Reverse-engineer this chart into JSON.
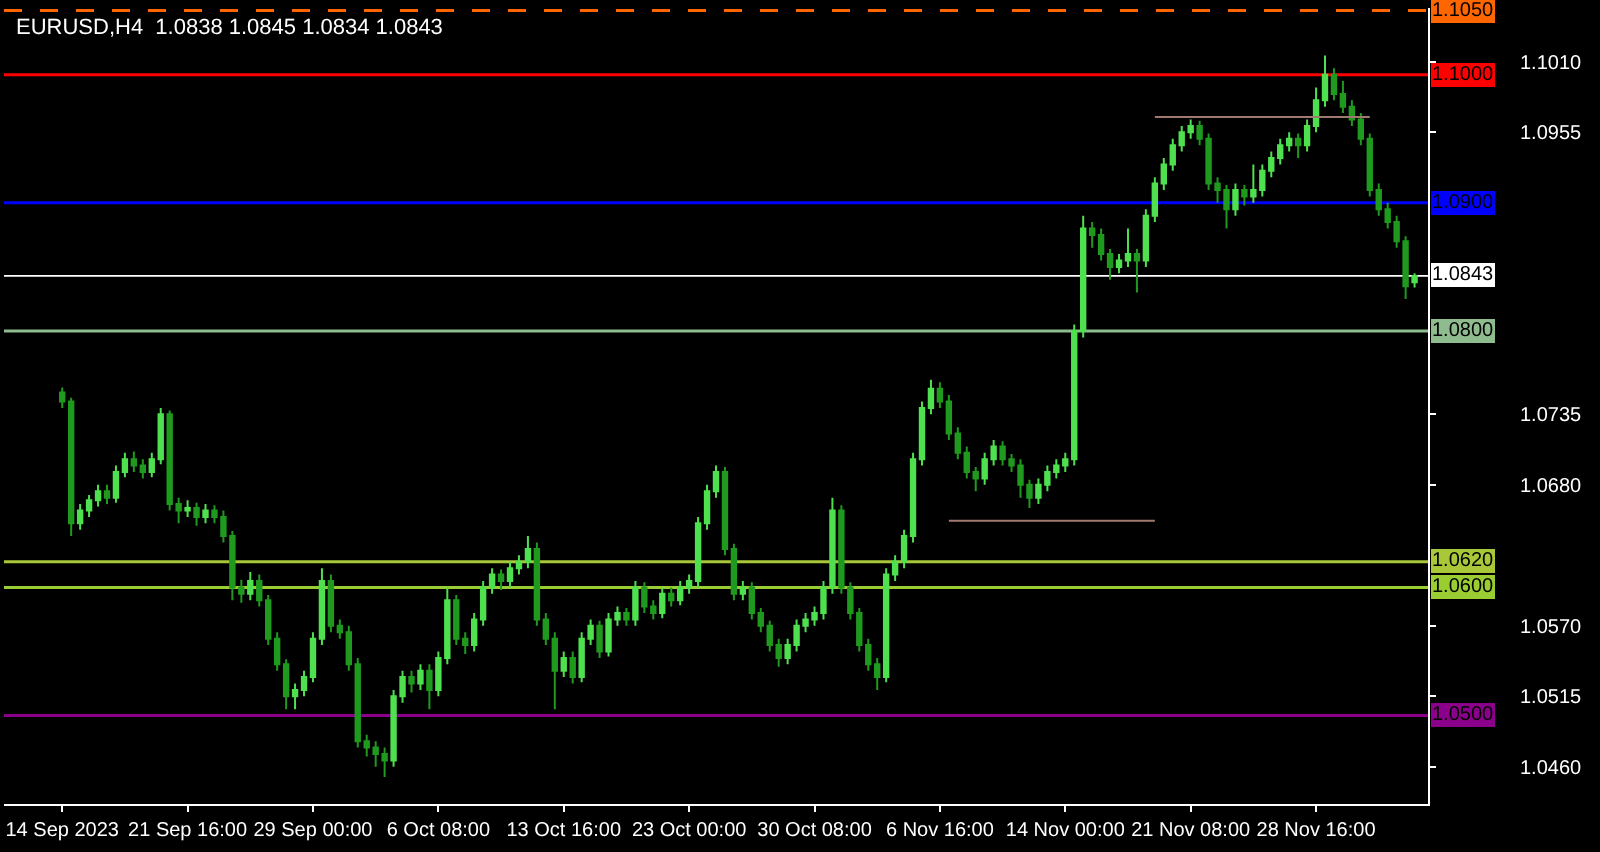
{
  "chart_data": {
    "type": "candlestick",
    "title": "EURUSD,H4  1.0838 1.0845 1.0834 1.0843",
    "categories": [
      "14 Sep 2023",
      null,
      null,
      null,
      null,
      null,
      null,
      null,
      null,
      null,
      null,
      null,
      null,
      null,
      "21 Sep 16:00",
      null,
      null,
      null,
      null,
      null,
      null,
      null,
      null,
      null,
      null,
      null,
      null,
      null,
      "29 Sep 00:00",
      null,
      null,
      null,
      null,
      null,
      null,
      null,
      null,
      null,
      null,
      null,
      null,
      null,
      "6 Oct 08:00",
      null,
      null,
      null,
      null,
      null,
      null,
      null,
      null,
      null,
      null,
      null,
      null,
      null,
      "13 Oct 16:00",
      null,
      null,
      null,
      null,
      null,
      null,
      null,
      null,
      null,
      null,
      null,
      null,
      null,
      "23 Oct 00:00",
      null,
      null,
      null,
      null,
      null,
      null,
      null,
      null,
      null,
      null,
      null,
      null,
      null,
      "30 Oct 08:00",
      null,
      null,
      null,
      null,
      null,
      null,
      null,
      null,
      null,
      null,
      null,
      null,
      null,
      "6 Nov 16:00",
      null,
      null,
      null,
      null,
      null,
      null,
      null,
      null,
      null,
      null,
      null,
      null,
      null,
      "14 Nov 00:00",
      null,
      null,
      null,
      null,
      null,
      null,
      null,
      null,
      null,
      null,
      null,
      null,
      null,
      "21 Nov 08:00",
      null,
      null,
      null,
      null,
      null,
      null,
      null,
      null,
      null,
      null,
      null,
      null,
      null,
      "28 Nov 16:00",
      null,
      null,
      null,
      null,
      null,
      null,
      null,
      null,
      null,
      null,
      null
    ],
    "ohlc": [
      [
        1.0752,
        1.0756,
        1.074,
        1.0745
      ],
      [
        1.0745,
        1.0748,
        1.064,
        1.065
      ],
      [
        1.065,
        1.0665,
        1.0645,
        1.066
      ],
      [
        1.066,
        1.0672,
        1.0655,
        1.0668
      ],
      [
        1.0668,
        1.068,
        1.0663,
        1.0675
      ],
      [
        1.0675,
        1.068,
        1.0665,
        1.067
      ],
      [
        1.067,
        1.0695,
        1.0666,
        1.069
      ],
      [
        1.069,
        1.0705,
        1.0686,
        1.07
      ],
      [
        1.07,
        1.0706,
        1.069,
        1.0695
      ],
      [
        1.0695,
        1.07,
        1.0685,
        1.069
      ],
      [
        1.069,
        1.0705,
        1.0686,
        1.07
      ],
      [
        1.07,
        1.074,
        1.0696,
        1.0735
      ],
      [
        1.0735,
        1.0738,
        1.066,
        1.0665
      ],
      [
        1.0665,
        1.067,
        1.065,
        1.066
      ],
      [
        1.066,
        1.0668,
        1.0655,
        1.0662
      ],
      [
        1.0662,
        1.0666,
        1.0648,
        1.0655
      ],
      [
        1.0655,
        1.0665,
        1.065,
        1.066
      ],
      [
        1.066,
        1.0664,
        1.065,
        1.0655
      ],
      [
        1.0655,
        1.066,
        1.0635,
        1.064
      ],
      [
        1.064,
        1.0644,
        1.059,
        1.06
      ],
      [
        1.06,
        1.0606,
        1.0588,
        1.0595
      ],
      [
        1.0595,
        1.0612,
        1.059,
        1.0605
      ],
      [
        1.0605,
        1.061,
        1.0585,
        1.059
      ],
      [
        1.059,
        1.0594,
        1.0555,
        1.056
      ],
      [
        1.056,
        1.0565,
        1.0535,
        1.054
      ],
      [
        1.054,
        1.0544,
        1.0505,
        1.0515
      ],
      [
        1.0515,
        1.0525,
        1.0505,
        1.052
      ],
      [
        1.052,
        1.0535,
        1.0515,
        1.053
      ],
      [
        1.053,
        1.0565,
        1.0526,
        1.056
      ],
      [
        1.056,
        1.0615,
        1.0555,
        1.0605
      ],
      [
        1.0605,
        1.061,
        1.0565,
        1.057
      ],
      [
        1.057,
        1.0575,
        1.056,
        1.0565
      ],
      [
        1.0565,
        1.057,
        1.0535,
        1.054
      ],
      [
        1.054,
        1.0545,
        1.0475,
        1.048
      ],
      [
        1.048,
        1.0485,
        1.0468,
        1.0475
      ],
      [
        1.0475,
        1.048,
        1.046,
        1.047
      ],
      [
        1.047,
        1.0475,
        1.0452,
        1.0465
      ],
      [
        1.0465,
        1.052,
        1.046,
        1.0515
      ],
      [
        1.0515,
        1.0535,
        1.051,
        1.053
      ],
      [
        1.053,
        1.0535,
        1.0518,
        1.0525
      ],
      [
        1.0525,
        1.054,
        1.052,
        1.0535
      ],
      [
        1.0535,
        1.054,
        1.0505,
        1.052
      ],
      [
        1.052,
        1.055,
        1.0515,
        1.0545
      ],
      [
        1.0545,
        1.06,
        1.054,
        1.059
      ],
      [
        1.059,
        1.0594,
        1.0555,
        1.056
      ],
      [
        1.056,
        1.0565,
        1.0548,
        1.0555
      ],
      [
        1.0555,
        1.058,
        1.055,
        1.0575
      ],
      [
        1.0575,
        1.0605,
        1.057,
        1.06
      ],
      [
        1.06,
        1.0615,
        1.0595,
        1.061
      ],
      [
        1.061,
        1.0614,
        1.0598,
        1.0605
      ],
      [
        1.0605,
        1.062,
        1.06,
        1.0615
      ],
      [
        1.0615,
        1.0625,
        1.061,
        1.062
      ],
      [
        1.062,
        1.064,
        1.0615,
        1.063
      ],
      [
        1.063,
        1.0635,
        1.057,
        1.0575
      ],
      [
        1.0575,
        1.058,
        1.0555,
        1.056
      ],
      [
        1.056,
        1.0565,
        1.0505,
        1.0535
      ],
      [
        1.0535,
        1.055,
        1.053,
        1.0545
      ],
      [
        1.0545,
        1.055,
        1.0525,
        1.053
      ],
      [
        1.053,
        1.0565,
        1.0526,
        1.056
      ],
      [
        1.056,
        1.0575,
        1.0555,
        1.057
      ],
      [
        1.057,
        1.0574,
        1.0545,
        1.055
      ],
      [
        1.055,
        1.058,
        1.0546,
        1.0575
      ],
      [
        1.0575,
        1.0585,
        1.057,
        1.058
      ],
      [
        1.058,
        1.0584,
        1.057,
        1.0575
      ],
      [
        1.0575,
        1.0605,
        1.057,
        1.06
      ],
      [
        1.06,
        1.0604,
        1.058,
        1.0585
      ],
      [
        1.0585,
        1.059,
        1.0575,
        1.058
      ],
      [
        1.058,
        1.06,
        1.0576,
        1.0595
      ],
      [
        1.0595,
        1.06,
        1.0585,
        1.059
      ],
      [
        1.059,
        1.0605,
        1.0586,
        1.06
      ],
      [
        1.06,
        1.061,
        1.0595,
        1.0605
      ],
      [
        1.0605,
        1.0655,
        1.06,
        1.065
      ],
      [
        1.065,
        1.068,
        1.0645,
        1.0675
      ],
      [
        1.0675,
        1.0695,
        1.067,
        1.069
      ],
      [
        1.069,
        1.0694,
        1.0625,
        1.063
      ],
      [
        1.063,
        1.0634,
        1.059,
        1.0595
      ],
      [
        1.0595,
        1.0605,
        1.059,
        1.06
      ],
      [
        1.06,
        1.0604,
        1.0575,
        1.058
      ],
      [
        1.058,
        1.0584,
        1.0565,
        1.057
      ],
      [
        1.057,
        1.0574,
        1.055,
        1.0555
      ],
      [
        1.0555,
        1.056,
        1.0538,
        1.0545
      ],
      [
        1.0545,
        1.056,
        1.054,
        1.0555
      ],
      [
        1.0555,
        1.0575,
        1.055,
        1.057
      ],
      [
        1.057,
        1.058,
        1.0565,
        1.0575
      ],
      [
        1.0575,
        1.0585,
        1.057,
        1.058
      ],
      [
        1.058,
        1.0605,
        1.0575,
        1.06
      ],
      [
        1.06,
        1.067,
        1.0595,
        1.066
      ],
      [
        1.066,
        1.0664,
        1.0595,
        1.06
      ],
      [
        1.06,
        1.0604,
        1.0575,
        1.058
      ],
      [
        1.058,
        1.0584,
        1.055,
        1.0555
      ],
      [
        1.0555,
        1.056,
        1.0535,
        1.054
      ],
      [
        1.054,
        1.0545,
        1.052,
        1.053
      ],
      [
        1.053,
        1.0615,
        1.0526,
        1.061
      ],
      [
        1.061,
        1.0625,
        1.0605,
        1.062
      ],
      [
        1.062,
        1.0645,
        1.0615,
        1.064
      ],
      [
        1.064,
        1.0705,
        1.0635,
        1.07
      ],
      [
        1.07,
        1.0745,
        1.0695,
        1.074
      ],
      [
        1.074,
        1.0762,
        1.0735,
        1.0755
      ],
      [
        1.0755,
        1.076,
        1.074,
        1.0745
      ],
      [
        1.0745,
        1.075,
        1.0715,
        1.072
      ],
      [
        1.072,
        1.0725,
        1.07,
        1.0705
      ],
      [
        1.0705,
        1.071,
        1.0685,
        1.069
      ],
      [
        1.069,
        1.0694,
        1.0675,
        1.0685
      ],
      [
        1.0685,
        1.0705,
        1.068,
        1.07
      ],
      [
        1.07,
        1.0715,
        1.0695,
        1.071
      ],
      [
        1.071,
        1.0714,
        1.0695,
        1.07
      ],
      [
        1.07,
        1.0704,
        1.069,
        1.0695
      ],
      [
        1.0695,
        1.07,
        1.067,
        1.068
      ],
      [
        1.068,
        1.0684,
        1.0662,
        1.067
      ],
      [
        1.067,
        1.0685,
        1.0665,
        1.068
      ],
      [
        1.068,
        1.0695,
        1.0675,
        1.069
      ],
      [
        1.069,
        1.07,
        1.0685,
        1.0695
      ],
      [
        1.0695,
        1.0705,
        1.069,
        1.07
      ],
      [
        1.07,
        1.0805,
        1.0695,
        1.08
      ],
      [
        1.08,
        1.089,
        1.0795,
        1.088
      ],
      [
        1.088,
        1.0885,
        1.0865,
        1.0875
      ],
      [
        1.0875,
        1.088,
        1.0855,
        1.086
      ],
      [
        1.086,
        1.0864,
        1.084,
        1.085
      ],
      [
        1.085,
        1.086,
        1.0845,
        1.0855
      ],
      [
        1.0855,
        1.088,
        1.085,
        1.086
      ],
      [
        1.086,
        1.0864,
        1.083,
        1.0855
      ],
      [
        1.0855,
        1.0895,
        1.085,
        1.089
      ],
      [
        1.089,
        1.092,
        1.0885,
        1.0915
      ],
      [
        1.0915,
        1.0935,
        1.091,
        1.093
      ],
      [
        1.093,
        1.095,
        1.0925,
        1.0945
      ],
      [
        1.0945,
        1.096,
        1.094,
        1.0955
      ],
      [
        1.0955,
        1.0965,
        1.095,
        1.096
      ],
      [
        1.096,
        1.0964,
        1.0945,
        1.095
      ],
      [
        1.095,
        1.0954,
        1.091,
        1.0915
      ],
      [
        1.0915,
        1.092,
        1.09,
        1.091
      ],
      [
        1.091,
        1.0914,
        1.088,
        1.0895
      ],
      [
        1.0895,
        1.0915,
        1.089,
        1.091
      ],
      [
        1.091,
        1.0914,
        1.0898,
        1.0905
      ],
      [
        1.0905,
        1.093,
        1.09,
        1.091
      ],
      [
        1.091,
        1.093,
        1.0905,
        1.0925
      ],
      [
        1.0925,
        1.094,
        1.092,
        1.0935
      ],
      [
        1.0935,
        1.095,
        1.093,
        1.0945
      ],
      [
        1.0945,
        1.0955,
        1.094,
        1.095
      ],
      [
        1.095,
        1.0954,
        1.0935,
        1.0945
      ],
      [
        1.0945,
        1.0965,
        1.094,
        1.096
      ],
      [
        1.096,
        1.099,
        1.0955,
        1.098
      ],
      [
        1.098,
        1.1015,
        1.0975,
        1.1
      ],
      [
        1.1,
        1.1005,
        1.098,
        1.0985
      ],
      [
        1.0985,
        1.0995,
        1.097,
        1.0975
      ],
      [
        1.0975,
        1.098,
        1.096,
        1.0965
      ],
      [
        1.0965,
        1.097,
        1.0945,
        1.095
      ],
      [
        1.095,
        1.0954,
        1.0905,
        1.091
      ],
      [
        1.091,
        1.0915,
        1.089,
        1.0895
      ],
      [
        1.0895,
        1.09,
        1.088,
        1.0885
      ],
      [
        1.0885,
        1.089,
        1.0865,
        1.087
      ],
      [
        1.087,
        1.0874,
        1.0825,
        1.0835
      ],
      [
        1.0838,
        1.0845,
        1.0834,
        1.0843
      ]
    ],
    "colors": [
      "#1f9a1f",
      "#1f9a1f",
      "#4fe04f",
      "#4fe04f",
      "#4fe04f",
      "#1f9a1f",
      "#4fe04f",
      "#4fe04f",
      "#1f9a1f",
      "#1f9a1f",
      "#4fe04f",
      "#4fe04f",
      "#1f9a1f",
      "#1f9a1f",
      "#4fe04f",
      "#1f9a1f",
      "#4fe04f",
      "#1f9a1f",
      "#1f9a1f",
      "#1f9a1f",
      "#1f9a1f",
      "#4fe04f",
      "#1f9a1f",
      "#1f9a1f",
      "#1f9a1f",
      "#1f9a1f",
      "#4fe04f",
      "#4fe04f",
      "#4fe04f",
      "#4fe04f",
      "#1f9a1f",
      "#1f9a1f",
      "#1f9a1f",
      "#1f9a1f",
      "#1f9a1f",
      "#1f9a1f",
      "#1f9a1f",
      "#4fe04f",
      "#4fe04f",
      "#1f9a1f",
      "#4fe04f",
      "#1f9a1f",
      "#4fe04f",
      "#4fe04f",
      "#1f9a1f",
      "#1f9a1f",
      "#4fe04f",
      "#4fe04f",
      "#4fe04f",
      "#1f9a1f",
      "#4fe04f",
      "#4fe04f",
      "#4fe04f",
      "#1f9a1f",
      "#1f9a1f",
      "#1f9a1f",
      "#4fe04f",
      "#1f9a1f",
      "#4fe04f",
      "#4fe04f",
      "#1f9a1f",
      "#4fe04f",
      "#4fe04f",
      "#1f9a1f",
      "#4fe04f",
      "#1f9a1f",
      "#1f9a1f",
      "#4fe04f",
      "#1f9a1f",
      "#4fe04f",
      "#4fe04f",
      "#4fe04f",
      "#4fe04f",
      "#4fe04f",
      "#1f9a1f",
      "#1f9a1f",
      "#4fe04f",
      "#1f9a1f",
      "#1f9a1f",
      "#1f9a1f",
      "#1f9a1f",
      "#4fe04f",
      "#4fe04f",
      "#4fe04f",
      "#4fe04f",
      "#4fe04f",
      "#4fe04f",
      "#1f9a1f",
      "#1f9a1f",
      "#1f9a1f",
      "#1f9a1f",
      "#1f9a1f",
      "#4fe04f",
      "#4fe04f",
      "#4fe04f",
      "#4fe04f",
      "#4fe04f",
      "#4fe04f",
      "#1f9a1f",
      "#1f9a1f",
      "#1f9a1f",
      "#1f9a1f",
      "#1f9a1f",
      "#4fe04f",
      "#4fe04f",
      "#1f9a1f",
      "#1f9a1f",
      "#1f9a1f",
      "#1f9a1f",
      "#4fe04f",
      "#4fe04f",
      "#4fe04f",
      "#4fe04f",
      "#4fe04f",
      "#4fe04f",
      "#1f9a1f",
      "#1f9a1f",
      "#1f9a1f",
      "#4fe04f",
      "#4fe04f",
      "#1f9a1f",
      "#4fe04f",
      "#4fe04f",
      "#4fe04f",
      "#4fe04f",
      "#4fe04f",
      "#4fe04f",
      "#1f9a1f",
      "#1f9a1f",
      "#1f9a1f",
      "#1f9a1f",
      "#4fe04f",
      "#1f9a1f",
      "#4fe04f",
      "#4fe04f",
      "#4fe04f",
      "#4fe04f",
      "#4fe04f",
      "#1f9a1f",
      "#4fe04f",
      "#4fe04f",
      "#4fe04f",
      "#1f9a1f",
      "#1f9a1f",
      "#1f9a1f",
      "#1f9a1f",
      "#1f9a1f",
      "#1f9a1f",
      "#1f9a1f",
      "#1f9a1f",
      "#1f9a1f",
      "#4fe04f"
    ],
    "series": [
      {
        "type": "line",
        "color": "#a07a6e",
        "values": [
          null,
          null,
          null,
          null,
          null,
          null,
          null,
          null,
          null,
          null,
          null,
          null,
          null,
          null,
          null,
          null,
          null,
          null,
          null,
          null,
          null,
          null,
          null,
          null,
          null,
          null,
          null,
          null,
          null,
          null,
          null,
          null,
          null,
          null,
          null,
          null,
          null,
          null,
          null,
          null,
          null,
          null,
          null,
          null,
          null,
          null,
          null,
          null,
          null,
          null,
          null,
          null,
          null,
          null,
          null,
          null,
          null,
          null,
          null,
          null,
          null,
          null,
          null,
          null,
          null,
          null,
          null,
          null,
          null,
          null,
          null,
          null,
          null,
          null,
          null,
          null,
          null,
          null,
          null,
          null,
          null,
          null,
          null,
          null,
          null,
          null,
          null,
          null,
          null,
          null,
          null,
          null,
          null,
          null,
          null,
          null,
          null,
          null,
          null,
          1.0652,
          1.0652,
          1.0652,
          1.0652,
          1.0652,
          1.0652,
          1.0652,
          1.0652,
          1.0652,
          1.0652,
          1.0652,
          1.0652,
          1.0652,
          1.0652,
          1.0652,
          1.0652,
          1.0652,
          1.0652,
          1.0652,
          1.0652,
          1.0652,
          1.0652,
          1.0652,
          1.0652,
          null,
          null,
          null,
          null,
          null,
          null,
          null,
          null,
          null,
          null,
          null,
          null,
          null,
          null,
          null,
          null,
          null,
          null,
          null,
          null,
          null,
          null,
          null,
          null,
          null,
          null,
          null,
          null,
          null
        ]
      },
      {
        "type": "line",
        "color": "#a07a6e",
        "values": [
          null,
          null,
          null,
          null,
          null,
          null,
          null,
          null,
          null,
          null,
          null,
          null,
          null,
          null,
          null,
          null,
          null,
          null,
          null,
          null,
          null,
          null,
          null,
          null,
          null,
          null,
          null,
          null,
          null,
          null,
          null,
          null,
          null,
          null,
          null,
          null,
          null,
          null,
          null,
          null,
          null,
          null,
          null,
          null,
          null,
          null,
          null,
          null,
          null,
          null,
          null,
          null,
          null,
          null,
          null,
          null,
          null,
          null,
          null,
          null,
          null,
          null,
          null,
          null,
          null,
          null,
          null,
          null,
          null,
          null,
          null,
          null,
          null,
          null,
          null,
          null,
          null,
          null,
          null,
          null,
          null,
          null,
          null,
          null,
          null,
          null,
          null,
          null,
          null,
          null,
          null,
          null,
          null,
          null,
          null,
          null,
          null,
          null,
          null,
          null,
          null,
          null,
          null,
          null,
          null,
          null,
          null,
          null,
          null,
          null,
          null,
          null,
          null,
          null,
          null,
          null,
          null,
          null,
          null,
          null,
          null,
          null,
          1.0967,
          1.0967,
          1.0967,
          1.0967,
          1.0967,
          1.0967,
          1.0967,
          1.0967,
          1.0967,
          1.0967,
          1.0967,
          1.0967,
          1.0967,
          1.0967,
          1.0967,
          1.0967,
          1.0967,
          1.0967,
          1.0967,
          1.0967,
          1.0967,
          1.0967,
          1.0967,
          1.0967,
          1.0967,
          null,
          null,
          null,
          null,
          null
        ]
      }
    ],
    "ylim": [
      1.0431,
      1.1052
    ],
    "yticks": [
      {
        "value": 1.046,
        "label": "1.0460"
      },
      1.0515,
      {
        "value": 1.057,
        "label": "1.0570"
      },
      {
        "value": 1.068,
        "label": "1.0680"
      },
      1.0735,
      1.0955,
      {
        "value": 1.101,
        "label": "1.1010"
      }
    ],
    "ref_lines": [
      {
        "axis": "y",
        "value": 1.105,
        "label": "1.1050",
        "color": "#ff6600",
        "line_style": "dashed"
      },
      {
        "axis": "y",
        "value": 1.1,
        "label": "1.1000",
        "color": "#ff0000"
      },
      {
        "axis": "y",
        "value": 1.09,
        "label": "1.0900",
        "color": "#0000ff"
      },
      {
        "axis": "y",
        "value": 1.0843,
        "label": "1.0843",
        "color": "#ffffff"
      },
      {
        "axis": "y",
        "value": 1.08,
        "label": "1.0800",
        "color": "#8fbc8f"
      },
      {
        "axis": "y",
        "value": 1.062,
        "label": "1.0620",
        "color": "#a8c83a"
      },
      {
        "axis": "y",
        "value": 1.06,
        "label": "1.0600",
        "color": "#9acd32"
      },
      {
        "axis": "y",
        "value": 1.05,
        "label": "1.0500",
        "color": "#8b008b"
      }
    ],
    "grid": false
  }
}
